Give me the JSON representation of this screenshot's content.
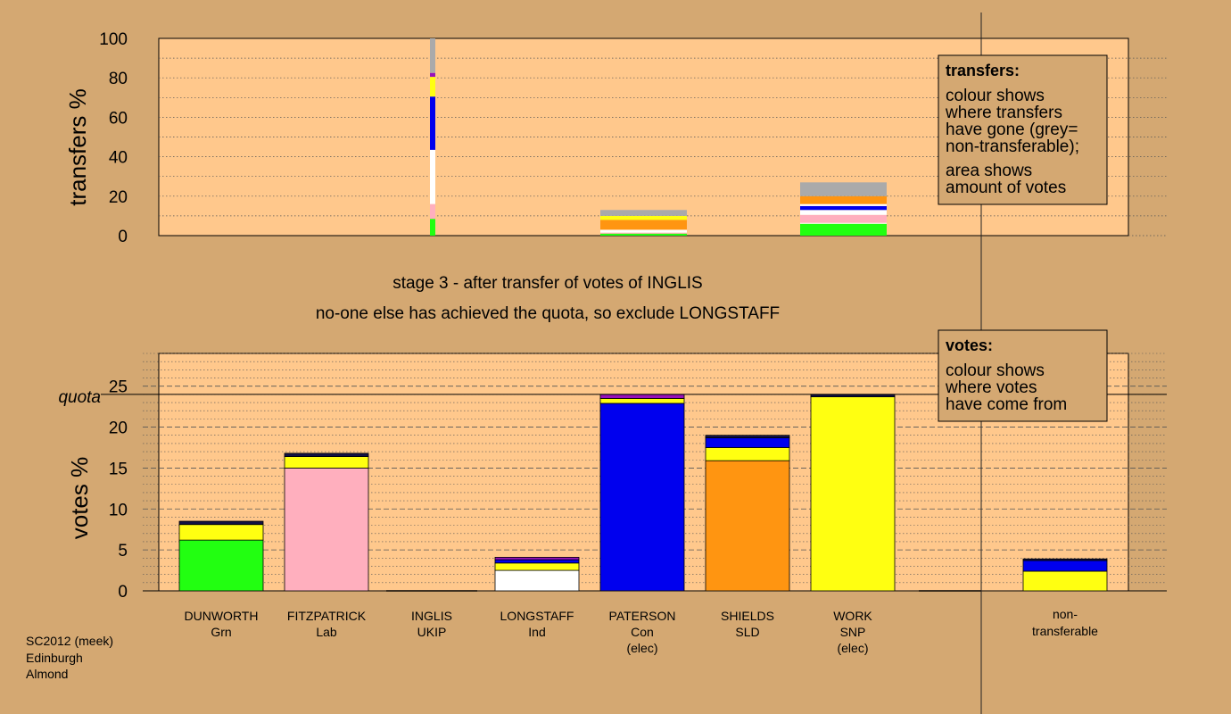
{
  "colors": {
    "background": "#d4a872",
    "plot_bg": "#ffc88c",
    "Grn": "#22ff11",
    "Lab": "#ffafbe",
    "UKIP": "#9911bb",
    "Ind": "#ffffff",
    "Con": "#0000ee",
    "SLD": "#ff9511",
    "SNP": "#ffff11",
    "nontransferable": "#aaaaaa",
    "other": "#111144"
  },
  "stage_text": {
    "line1": "stage 3 - after transfer of votes of INGLIS",
    "line2": "no-one else has achieved the quota, so exclude LONGSTAFF"
  },
  "legend_transfers": {
    "title": "transfers:",
    "lines1": [
      "colour shows",
      "where transfers",
      "have gone (grey=",
      "non-transferable);"
    ],
    "lines2": [
      "area shows",
      "amount of votes"
    ]
  },
  "legend_votes": {
    "title": "votes:",
    "lines": [
      "colour shows",
      "where votes",
      "have come from"
    ]
  },
  "footer": [
    "SC2012 (meek)",
    "Edinburgh",
    "Almond"
  ],
  "chart_data": [
    {
      "type": "bar",
      "stacked": true,
      "ylabel": "transfers %",
      "ylim": [
        0,
        100
      ],
      "yticks": [
        0,
        20,
        40,
        60,
        80,
        100
      ],
      "bars": [
        {
          "candidate": "INGLIS",
          "segments": [
            {
              "party": "Grn",
              "value": 8.5
            },
            {
              "party": "Lab",
              "value": 7.5
            },
            {
              "party": "Ind",
              "value": 27.5
            },
            {
              "party": "Con",
              "value": 27.0
            },
            {
              "party": "SNP",
              "value": 10.0
            },
            {
              "party": "UKIP",
              "value": 2.0
            },
            {
              "party": "nontransferable",
              "value": 17.5
            }
          ]
        },
        {
          "candidate": "PATERSON",
          "segments": [
            {
              "party": "Grn",
              "value": 1.0
            },
            {
              "party": "Lab",
              "value": 0.5
            },
            {
              "party": "Ind",
              "value": 1.5
            },
            {
              "party": "SLD",
              "value": 5.0
            },
            {
              "party": "SNP",
              "value": 2.0
            },
            {
              "party": "nontransferable",
              "value": 3.0
            }
          ]
        },
        {
          "candidate": "WORK",
          "segments": [
            {
              "party": "Grn",
              "value": 6.0
            },
            {
              "party": "Ind",
              "value": 0.5
            },
            {
              "party": "Lab",
              "value": 4.0
            },
            {
              "party": "Ind",
              "value": 2.5
            },
            {
              "party": "Con",
              "value": 2.0
            },
            {
              "party": "Ind",
              "value": 1.0
            },
            {
              "party": "SLD",
              "value": 4.0
            },
            {
              "party": "nontransferable",
              "value": 7.0
            }
          ]
        }
      ]
    },
    {
      "type": "bar",
      "stacked": true,
      "ylabel": "votes %",
      "ylim": [
        0,
        29
      ],
      "yticks": [
        0,
        5,
        10,
        15,
        20,
        25
      ],
      "quota": 24.0,
      "quota_label": "quota",
      "candidates": [
        {
          "name": "DUNWORTH",
          "party": "Grn",
          "note": "",
          "segments": [
            {
              "party": "Grn",
              "value": 6.2
            },
            {
              "party": "SNP",
              "value": 1.9
            },
            {
              "party": "other",
              "value": 0.4
            }
          ]
        },
        {
          "name": "FITZPATRICK",
          "party": "Lab",
          "note": "",
          "segments": [
            {
              "party": "Lab",
              "value": 15.0
            },
            {
              "party": "SNP",
              "value": 1.4
            },
            {
              "party": "other",
              "value": 0.4
            }
          ]
        },
        {
          "name": "INGLIS",
          "party": "UKIP",
          "note": "",
          "segments": []
        },
        {
          "name": "LONGSTAFF",
          "party": "Ind",
          "note": "",
          "segments": [
            {
              "party": "Ind",
              "value": 2.5
            },
            {
              "party": "SNP",
              "value": 0.9
            },
            {
              "party": "Con",
              "value": 0.4
            },
            {
              "party": "UKIP",
              "value": 0.3
            }
          ]
        },
        {
          "name": "PATERSON",
          "party": "Con",
          "note": "(elec)",
          "segments": [
            {
              "party": "Con",
              "value": 22.9
            },
            {
              "party": "SNP",
              "value": 0.6
            },
            {
              "party": "UKIP",
              "value": 0.5
            }
          ]
        },
        {
          "name": "SHIELDS",
          "party": "SLD",
          "note": "",
          "segments": [
            {
              "party": "SLD",
              "value": 15.9
            },
            {
              "party": "SNP",
              "value": 1.6
            },
            {
              "party": "Con",
              "value": 1.2
            },
            {
              "party": "other",
              "value": 0.3
            }
          ]
        },
        {
          "name": "WORK",
          "party": "SNP",
          "note": "(elec)",
          "segments": [
            {
              "party": "SNP",
              "value": 23.7
            },
            {
              "party": "other",
              "value": 0.3
            }
          ]
        }
      ],
      "nontransferable": {
        "label_lines": [
          "non-",
          "transferable"
        ],
        "segments": [
          {
            "party": "SNP",
            "value": 2.4
          },
          {
            "party": "Con",
            "value": 1.3
          },
          {
            "party": "other",
            "value": 0.2
          }
        ]
      }
    }
  ]
}
